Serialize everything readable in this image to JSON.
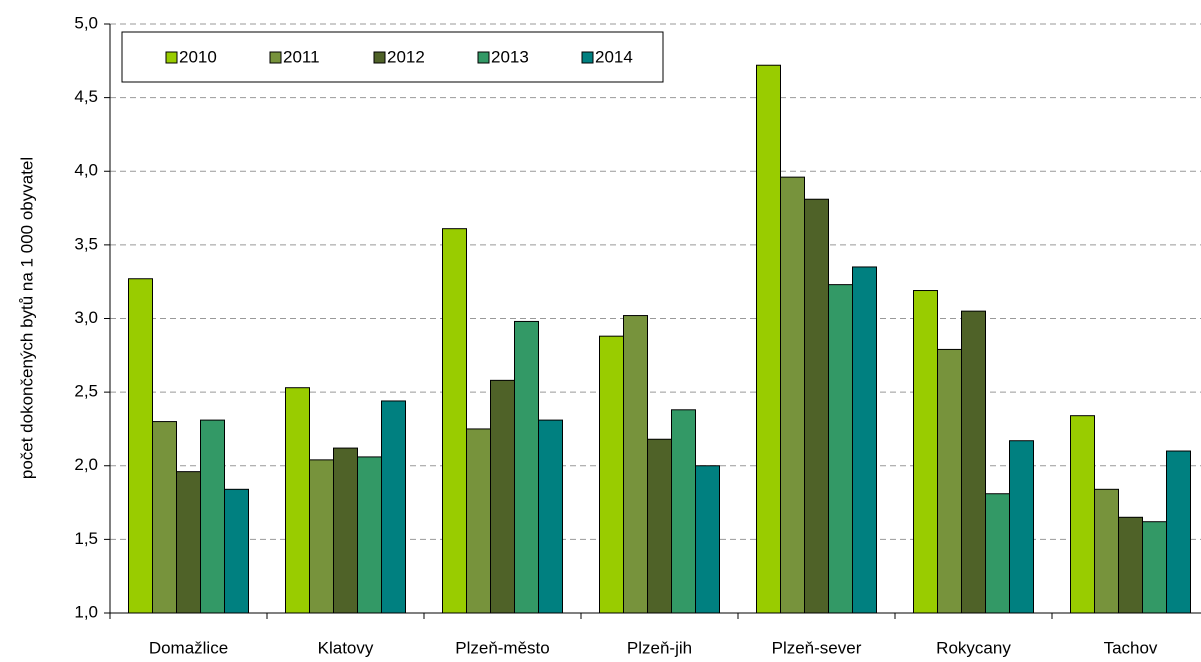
{
  "chart_data": {
    "type": "bar",
    "y_label": "počet dokončených bytů na 1 000 obyvatel",
    "categories": [
      "Domažlice",
      "Klatovy",
      "Plzeň-město",
      "Plzeň-jih",
      "Plzeň-sever",
      "Rokycany",
      "Tachov"
    ],
    "series": [
      {
        "name": "2010",
        "color": "#99cc00",
        "values": [
          3.27,
          2.53,
          3.61,
          2.88,
          4.72,
          3.19,
          2.34
        ]
      },
      {
        "name": "2011",
        "color": "#77933c",
        "values": [
          2.3,
          2.04,
          2.25,
          3.02,
          3.96,
          2.79,
          1.84
        ]
      },
      {
        "name": "2012",
        "color": "#4f6228",
        "values": [
          1.96,
          2.12,
          2.58,
          2.18,
          3.81,
          3.05,
          1.65
        ]
      },
      {
        "name": "2013",
        "color": "#339966",
        "values": [
          2.31,
          2.06,
          2.98,
          2.38,
          3.23,
          1.81,
          1.62
        ]
      },
      {
        "name": "2014",
        "color": "#008080",
        "values": [
          1.84,
          2.44,
          2.31,
          2.0,
          3.35,
          2.17,
          2.1
        ]
      }
    ],
    "ylim": [
      1,
      5
    ],
    "yticks": [
      {
        "value": 1,
        "label": "1,0"
      },
      {
        "value": 1.5,
        "label": "1,5"
      },
      {
        "value": 2,
        "label": "2,0"
      },
      {
        "value": 2.5,
        "label": "2,5"
      },
      {
        "value": 3,
        "label": "3,0"
      },
      {
        "value": 3.5,
        "label": "3,5"
      },
      {
        "value": 4,
        "label": "4,0"
      },
      {
        "value": 4.5,
        "label": "4,5"
      },
      {
        "value": 5,
        "label": "5,0"
      }
    ],
    "grid": true,
    "legend": "top-left"
  }
}
